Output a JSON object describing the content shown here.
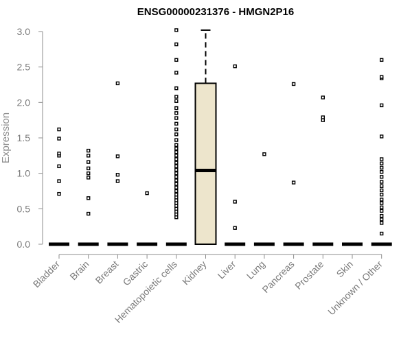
{
  "chart_data": {
    "type": "box",
    "title": "ENSG00000231376 - HMGN2P16",
    "ylabel": "Expression",
    "xlabel": "",
    "ylim": [
      0,
      3
    ],
    "yticks": [
      0.0,
      0.5,
      1.0,
      1.5,
      2.0,
      2.5,
      3.0
    ],
    "ytick_labels": [
      "0.0",
      "0.5",
      "1.0",
      "1.5",
      "2.0",
      "2.5",
      "3.0"
    ],
    "categories": [
      "Bladder",
      "Brain",
      "Breast",
      "Gastric",
      "Hematopoietic cells",
      "Kidney",
      "Liver",
      "Lung",
      "Pancreas",
      "Prostate",
      "Skin",
      "Unknown / Other"
    ],
    "box_fill": "#ede5cc",
    "boxes": [
      {
        "category": "Bladder",
        "q1": 0,
        "median": 0,
        "q3": 0,
        "whisker_low": 0,
        "whisker_high": 0,
        "outliers": [
          0.71,
          0.89,
          1.1,
          1.25,
          1.28,
          1.49,
          1.62
        ]
      },
      {
        "category": "Brain",
        "q1": 0,
        "median": 0,
        "q3": 0,
        "whisker_low": 0,
        "whisker_high": 0,
        "outliers": [
          0.43,
          0.65,
          0.94,
          1.0,
          1.07,
          1.16,
          1.25,
          1.32
        ]
      },
      {
        "category": "Breast",
        "q1": 0,
        "median": 0,
        "q3": 0,
        "whisker_low": 0,
        "whisker_high": 0,
        "outliers": [
          0.89,
          0.98,
          1.24,
          2.27
        ]
      },
      {
        "category": "Gastric",
        "q1": 0,
        "median": 0,
        "q3": 0,
        "whisker_low": 0,
        "whisker_high": 0,
        "outliers": [
          0.72
        ]
      },
      {
        "category": "Hematopoietic cells",
        "q1": 0,
        "median": 0,
        "q3": 0,
        "whisker_low": 0,
        "whisker_high": 0,
        "outliers": [
          0.38,
          0.42,
          0.46,
          0.5,
          0.54,
          0.58,
          0.62,
          0.66,
          0.7,
          0.75,
          0.8,
          0.85,
          0.9,
          0.95,
          1.0,
          1.05,
          1.1,
          1.15,
          1.2,
          1.25,
          1.3,
          1.35,
          1.4,
          1.47,
          1.55,
          1.62,
          1.7,
          1.78,
          1.85,
          1.92,
          2.02,
          2.08,
          2.2,
          2.42,
          2.6,
          2.82,
          3.02
        ]
      },
      {
        "category": "Kidney",
        "q1": 0,
        "median": 1.04,
        "q3": 2.27,
        "whisker_low": 0,
        "whisker_high": 3.02,
        "outliers": []
      },
      {
        "category": "Liver",
        "q1": 0,
        "median": 0,
        "q3": 0,
        "whisker_low": 0,
        "whisker_high": 0,
        "outliers": [
          0.23,
          0.6,
          2.51
        ]
      },
      {
        "category": "Lung",
        "q1": 0,
        "median": 0,
        "q3": 0,
        "whisker_low": 0,
        "whisker_high": 0,
        "outliers": [
          1.27
        ]
      },
      {
        "category": "Pancreas",
        "q1": 0,
        "median": 0,
        "q3": 0,
        "whisker_low": 0,
        "whisker_high": 0,
        "outliers": [
          0.87,
          2.26
        ]
      },
      {
        "category": "Prostate",
        "q1": 0,
        "median": 0,
        "q3": 0,
        "whisker_low": 0,
        "whisker_high": 0,
        "outliers": [
          1.75,
          1.79,
          2.07
        ]
      },
      {
        "category": "Skin",
        "q1": 0,
        "median": 0,
        "q3": 0,
        "whisker_low": 0,
        "whisker_high": 0,
        "outliers": []
      },
      {
        "category": "Unknown / Other",
        "q1": 0,
        "median": 0,
        "q3": 0,
        "whisker_low": 0,
        "whisker_high": 0,
        "outliers": [
          0.15,
          0.3,
          0.35,
          0.4,
          0.47,
          0.52,
          0.58,
          0.63,
          0.7,
          0.76,
          0.82,
          0.88,
          0.95,
          1.02,
          1.08,
          1.14,
          1.2,
          1.52,
          1.96,
          2.34,
          2.36,
          2.6
        ]
      }
    ]
  }
}
